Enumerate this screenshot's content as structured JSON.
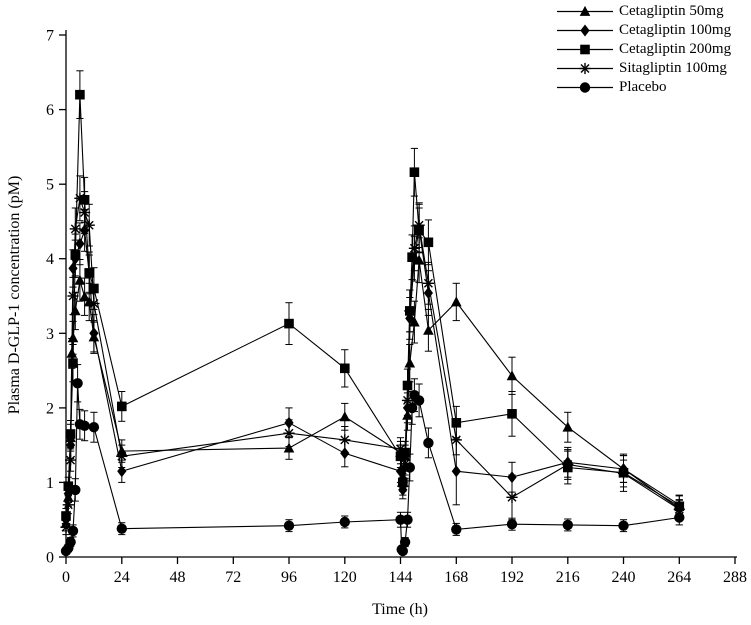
{
  "figure": {
    "background_color": "#ffffff",
    "foreground_color": "#000000"
  },
  "chart_data": {
    "type": "line",
    "title": "",
    "xlabel": "Time (h)",
    "ylabel": "Plasma D-GLP-1 concentration (pM)",
    "xlim": [
      0,
      288
    ],
    "ylim": [
      0,
      7
    ],
    "xticks": [
      0,
      24,
      48,
      72,
      96,
      120,
      144,
      168,
      192,
      216,
      240,
      264,
      288
    ],
    "yticks": [
      0,
      1,
      2,
      3,
      4,
      5,
      6,
      7
    ],
    "grid": false,
    "legend_position": "top-right",
    "error_bars": true,
    "series": [
      {
        "name": "Cetagliptin 50mg",
        "marker": "triangle",
        "color": "#000000",
        "x": [
          0,
          1,
          2,
          2.5,
          3,
          4,
          6,
          8,
          10,
          12,
          24,
          96,
          120,
          144,
          145,
          146,
          147,
          148,
          150,
          152,
          156,
          168,
          192,
          216,
          240,
          264
        ],
        "y": [
          0.45,
          0.8,
          1.6,
          2.73,
          2.94,
          3.3,
          3.71,
          3.49,
          3.42,
          2.95,
          1.42,
          1.46,
          1.88,
          1.4,
          1.05,
          1.35,
          1.9,
          2.6,
          3.15,
          3.98,
          3.04,
          3.42,
          2.43,
          1.74,
          1.18,
          0.7
        ],
        "err": [
          0.1,
          0.12,
          0.18,
          0.2,
          0.22,
          0.25,
          0.28,
          0.25,
          0.25,
          0.22,
          0.15,
          0.15,
          0.18,
          0.15,
          0.12,
          0.15,
          0.2,
          0.25,
          0.28,
          0.3,
          0.28,
          0.25,
          0.25,
          0.2,
          0.18,
          0.12
        ]
      },
      {
        "name": "Cetagliptin 100mg",
        "marker": "diamond",
        "color": "#000000",
        "x": [
          0,
          1,
          2,
          3,
          4,
          6,
          8,
          10,
          12,
          24,
          96,
          120,
          144,
          145,
          146,
          147,
          148,
          150,
          152,
          156,
          168,
          192,
          216,
          240,
          264
        ],
        "y": [
          0.5,
          0.85,
          1.5,
          3.87,
          4.0,
          4.2,
          4.38,
          3.8,
          3.0,
          1.15,
          1.8,
          1.39,
          1.15,
          0.9,
          1.2,
          2.0,
          3.2,
          4.0,
          4.41,
          3.54,
          1.15,
          1.07,
          1.27,
          1.18,
          0.65
        ],
        "err": [
          0.1,
          0.12,
          0.18,
          0.25,
          0.25,
          0.28,
          0.28,
          0.25,
          0.25,
          0.15,
          0.2,
          0.18,
          0.15,
          0.12,
          0.15,
          0.2,
          0.28,
          0.3,
          0.32,
          0.3,
          0.45,
          0.2,
          0.2,
          0.18,
          0.12
        ]
      },
      {
        "name": "Cetagliptin 200mg",
        "marker": "square",
        "color": "#000000",
        "x": [
          0,
          1,
          2,
          3,
          4,
          6,
          8,
          10,
          12,
          24,
          96,
          120,
          144,
          145,
          146,
          147,
          148,
          149,
          150,
          152,
          156,
          168,
          192,
          216,
          240,
          264
        ],
        "y": [
          0.55,
          0.95,
          1.65,
          2.6,
          4.05,
          6.2,
          4.79,
          3.81,
          3.6,
          2.02,
          3.13,
          2.53,
          1.35,
          1.0,
          1.4,
          2.3,
          3.3,
          4.02,
          5.16,
          4.38,
          4.22,
          1.8,
          1.92,
          1.2,
          1.13,
          0.68
        ],
        "err": [
          0.1,
          0.12,
          0.18,
          0.25,
          0.28,
          0.32,
          0.3,
          0.28,
          0.28,
          0.2,
          0.28,
          0.25,
          0.15,
          0.12,
          0.15,
          0.22,
          0.28,
          0.3,
          0.32,
          0.3,
          0.3,
          0.22,
          0.3,
          0.22,
          0.25,
          0.15
        ]
      },
      {
        "name": "Sitagliptin 100mg",
        "marker": "star",
        "color": "#000000",
        "x": [
          0,
          1,
          2,
          3,
          4,
          6,
          8,
          10,
          12,
          24,
          96,
          120,
          144,
          145,
          146,
          147,
          148,
          150,
          152,
          156,
          168,
          192,
          216,
          240,
          264
        ],
        "y": [
          0.4,
          0.7,
          1.3,
          3.5,
          4.4,
          4.81,
          4.62,
          4.45,
          3.4,
          1.35,
          1.66,
          1.57,
          1.45,
          0.95,
          1.25,
          2.1,
          3.3,
          4.14,
          4.45,
          3.67,
          1.57,
          0.8,
          1.24,
          1.12,
          0.64
        ],
        "err": [
          0.1,
          0.12,
          0.15,
          0.25,
          0.28,
          0.3,
          0.28,
          0.28,
          0.25,
          0.15,
          0.18,
          0.18,
          0.15,
          0.12,
          0.15,
          0.2,
          0.28,
          0.3,
          0.3,
          0.28,
          0.2,
          0.3,
          0.2,
          0.18,
          0.12
        ]
      },
      {
        "name": "Placebo",
        "marker": "circle",
        "color": "#000000",
        "x": [
          0,
          1,
          2,
          3,
          4,
          5,
          6,
          8,
          12,
          24,
          96,
          120,
          144,
          144.5,
          145,
          146,
          147,
          148,
          149,
          150,
          152,
          156,
          168,
          192,
          216,
          240,
          264
        ],
        "y": [
          0.08,
          0.12,
          0.2,
          0.35,
          0.9,
          2.33,
          1.78,
          1.76,
          1.74,
          0.38,
          0.42,
          0.47,
          0.5,
          0.1,
          0.08,
          0.2,
          0.5,
          1.2,
          2.0,
          2.17,
          2.1,
          1.53,
          0.37,
          0.44,
          0.43,
          0.42,
          0.53
        ],
        "err": [
          0.04,
          0.05,
          0.06,
          0.08,
          0.15,
          0.25,
          0.2,
          0.2,
          0.2,
          0.08,
          0.08,
          0.08,
          0.1,
          0.04,
          0.04,
          0.06,
          0.1,
          0.18,
          0.22,
          0.22,
          0.22,
          0.2,
          0.08,
          0.08,
          0.08,
          0.08,
          0.1
        ]
      }
    ]
  }
}
